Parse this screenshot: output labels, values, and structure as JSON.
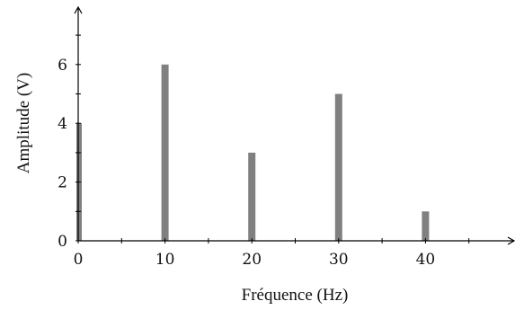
{
  "chart_data": {
    "type": "bar",
    "xlabel": "Fréquence (Hz)",
    "ylabel": "Amplitude (V)",
    "x": [
      0,
      10,
      20,
      30,
      40
    ],
    "values": [
      4,
      6,
      3,
      5,
      1
    ],
    "xlim": [
      0,
      50
    ],
    "ylim": [
      0,
      8
    ],
    "x_ticks": [
      0,
      10,
      20,
      30,
      40
    ],
    "x_tick_labels": [
      "0",
      "10",
      "20",
      "30",
      "40"
    ],
    "x_minor_ticks": [
      5,
      15,
      25,
      35,
      45
    ],
    "y_ticks": [
      0,
      2,
      4,
      6
    ],
    "y_tick_labels": [
      "0",
      "2",
      "4",
      "6"
    ],
    "y_minor_ticks": [
      1,
      3,
      5,
      7
    ],
    "grid": false,
    "bar_color": "#808080"
  }
}
